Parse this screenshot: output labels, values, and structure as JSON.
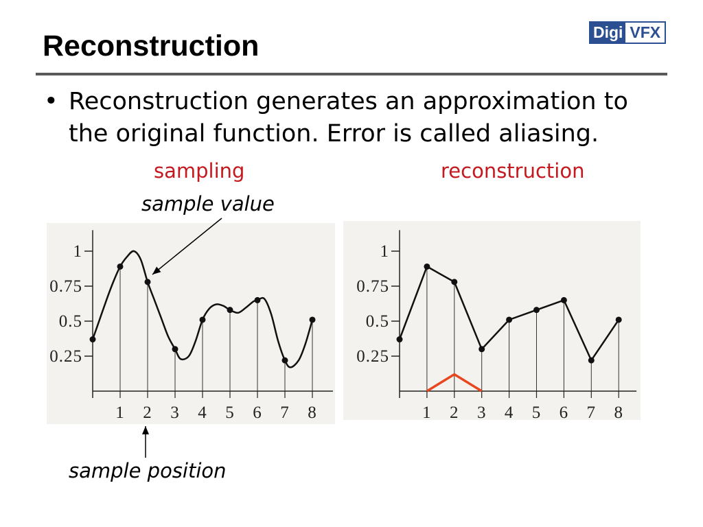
{
  "slide": {
    "title": "Reconstruction",
    "logo": {
      "left": "Digi",
      "right": "VFX"
    },
    "bullet_symbol": "•",
    "bullet_text": "Reconstruction generates an approximation to the original function. Error is called aliasing."
  },
  "colors": {
    "accent_red": "#c41a1f",
    "kernel_red": "#e8461e",
    "logo_blue": "#2b4f91",
    "rule_gray": "#595959",
    "chart_background": "#f4f2ee",
    "ink": "#111111"
  },
  "chart_data": [
    {
      "type": "line",
      "title": "sampling",
      "xlim": [
        0,
        8.75
      ],
      "ylim": [
        0,
        1.15
      ],
      "grid": false,
      "x_ticks": [
        1,
        2,
        3,
        4,
        5,
        6,
        7,
        8
      ],
      "x_tick_labels": [
        "1",
        "2",
        "3",
        "4",
        "5",
        "6",
        "7",
        "8"
      ],
      "y_ticks": [
        0.25,
        0.5,
        0.75,
        1
      ],
      "y_tick_labels": [
        "0.25",
        "0.5",
        "0.75",
        "1"
      ],
      "curve": {
        "smooth": true,
        "x": [
          0,
          0.25,
          0.5,
          0.75,
          1,
          1.25,
          1.5,
          1.75,
          2,
          2.25,
          2.5,
          2.75,
          3,
          3.2,
          3.5,
          3.75,
          4,
          4.25,
          4.5,
          4.75,
          5,
          5.3,
          5.6,
          5.85,
          6,
          6.25,
          6.5,
          6.75,
          7,
          7.2,
          7.5,
          7.75,
          8
        ],
        "y": [
          0.37,
          0.51,
          0.65,
          0.78,
          0.89,
          0.96,
          1.0,
          0.94,
          0.78,
          0.65,
          0.52,
          0.39,
          0.3,
          0.23,
          0.25,
          0.36,
          0.51,
          0.59,
          0.62,
          0.61,
          0.58,
          0.56,
          0.6,
          0.64,
          0.65,
          0.66,
          0.55,
          0.36,
          0.22,
          0.17,
          0.22,
          0.34,
          0.51
        ]
      },
      "samples": {
        "x": [
          0,
          1,
          2,
          3,
          4,
          5,
          6,
          7,
          8
        ],
        "y": [
          0.37,
          0.89,
          0.78,
          0.3,
          0.51,
          0.58,
          0.65,
          0.22,
          0.51
        ]
      },
      "annotations": [
        "sample value",
        "sample position"
      ]
    },
    {
      "type": "line",
      "title": "reconstruction",
      "xlim": [
        0,
        8.65
      ],
      "ylim": [
        0,
        1.15
      ],
      "grid": false,
      "x_ticks": [
        1,
        2,
        3,
        4,
        5,
        6,
        7,
        8
      ],
      "x_tick_labels": [
        "1",
        "2",
        "3",
        "4",
        "5",
        "6",
        "7",
        "8"
      ],
      "y_ticks": [
        0.25,
        0.5,
        0.75,
        1
      ],
      "y_tick_labels": [
        "0.25",
        "0.5",
        "0.75",
        "1"
      ],
      "curve": {
        "smooth": false,
        "x": [
          0,
          1,
          2,
          3,
          4,
          5,
          6,
          7,
          8
        ],
        "y": [
          0.37,
          0.89,
          0.78,
          0.3,
          0.51,
          0.58,
          0.65,
          0.22,
          0.51
        ]
      },
      "samples": {
        "x": [
          0,
          1,
          2,
          3,
          4,
          5,
          6,
          7,
          8
        ],
        "y": [
          0.37,
          0.89,
          0.78,
          0.3,
          0.51,
          0.58,
          0.65,
          0.22,
          0.51
        ]
      },
      "kernel": {
        "x": [
          1,
          2,
          3
        ],
        "y": [
          0,
          0.12,
          0
        ]
      }
    }
  ]
}
